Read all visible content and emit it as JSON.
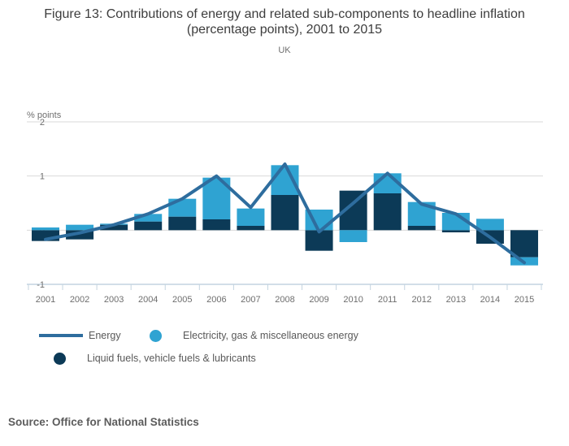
{
  "header": {
    "title": "Figure 13: Contributions of energy and related sub-components to headline inflation (percentage points), 2001 to 2015",
    "subtitle": "UK"
  },
  "chart_data": {
    "type": "bar",
    "subtype": "stacked bars with line overlay",
    "title": "Figure 13: Contributions of energy and related sub-components to headline inflation (percentage points), 2001 to 2015",
    "unit_label": "% points",
    "categories": [
      "2001",
      "2002",
      "2003",
      "2004",
      "2005",
      "2006",
      "2007",
      "2008",
      "2009",
      "2010",
      "2011",
      "2012",
      "2013",
      "2014",
      "2015"
    ],
    "series": [
      {
        "name": "Liquid fuels, vehicle fuels & lubricants",
        "type": "bar",
        "color": "#0c3a57",
        "values": [
          -0.2,
          -0.17,
          0.1,
          0.16,
          0.25,
          0.2,
          0.08,
          0.65,
          -0.38,
          0.73,
          0.68,
          0.08,
          -0.04,
          -0.25,
          -0.5
        ]
      },
      {
        "name": "Electricity, gas & miscellaneous energy",
        "type": "bar",
        "color": "#2fa3d2",
        "values": [
          0.05,
          0.1,
          0.02,
          0.14,
          0.33,
          0.77,
          0.32,
          0.55,
          0.38,
          -0.22,
          0.37,
          0.44,
          0.32,
          0.21,
          -0.15
        ]
      },
      {
        "name": "Energy",
        "type": "line",
        "color": "#2e6d9e",
        "values": [
          -0.17,
          -0.05,
          0.1,
          0.3,
          0.58,
          1.0,
          0.42,
          1.22,
          -0.03,
          0.5,
          1.05,
          0.48,
          0.3,
          -0.13,
          -0.6
        ]
      }
    ],
    "ylim": [
      -1,
      2
    ],
    "yticks": [
      2,
      1,
      0,
      -1
    ],
    "grid": true,
    "grid_color": "#d9d9d9",
    "axis_color": "#c4d4e0",
    "tick_text_color": "#6e6e6e",
    "legend_position": "bottom"
  },
  "legend": {
    "energy_label": "Energy",
    "electricity_label": "Electricity, gas & miscellaneous energy",
    "fuels_label": "Liquid fuels, vehicle fuels & lubricants"
  },
  "footer": {
    "source": "Source: Office for National Statistics"
  }
}
